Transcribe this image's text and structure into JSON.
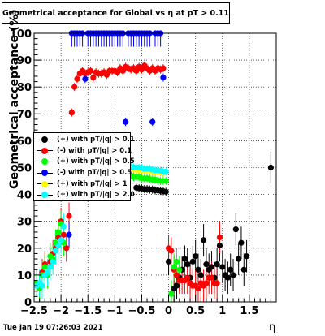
{
  "chart_data": {
    "type": "scatter",
    "title": "Geometrical acceptance for Global vs  η at pT > 0.11",
    "xlabel": "η",
    "ylabel": "Geometrical acceptance (%)",
    "xlim": [
      -2.5,
      2.0
    ],
    "ylim": [
      0,
      100
    ],
    "x_ticks": [
      -2.5,
      -2,
      -1.5,
      -1,
      -0.5,
      0,
      0.5,
      1,
      1.5
    ],
    "x_tick_labels": [
      "−2.5",
      "−2",
      "−1.5",
      "−1",
      "−0.5",
      "0",
      "0.5",
      "1",
      "1.5"
    ],
    "y_ticks": [
      0,
      10,
      20,
      30,
      40,
      50,
      60,
      70,
      80,
      90,
      100
    ],
    "y_tick_labels": [
      "0",
      "10",
      "20",
      "30",
      "40",
      "50",
      "60",
      "70",
      "80",
      "90",
      "100"
    ],
    "grid": true,
    "legend_position": "left-middle",
    "series": [
      {
        "name": "(+) with pT/|q| > 0.1",
        "color": "#000000",
        "points": [
          [
            -0.6,
            42.5
          ],
          [
            -0.55,
            42.3
          ],
          [
            -0.5,
            42.2
          ],
          [
            -0.45,
            42
          ],
          [
            -0.4,
            42
          ],
          [
            -0.35,
            41.8
          ],
          [
            -0.3,
            41.8
          ],
          [
            -0.25,
            41.5
          ],
          [
            -0.2,
            41.5
          ],
          [
            -0.15,
            41.3
          ],
          [
            -0.1,
            41.2
          ],
          [
            -0.05,
            41
          ],
          [
            0.0,
            15
          ],
          [
            0.05,
            3
          ],
          [
            0.1,
            5
          ],
          [
            0.15,
            6
          ],
          [
            0.2,
            9
          ],
          [
            0.25,
            12
          ],
          [
            0.3,
            16
          ],
          [
            0.35,
            14
          ],
          [
            0.4,
            9
          ],
          [
            0.45,
            15
          ],
          [
            0.5,
            17
          ],
          [
            0.55,
            12
          ],
          [
            0.6,
            10
          ],
          [
            0.65,
            23
          ],
          [
            0.7,
            14
          ],
          [
            0.75,
            12
          ],
          [
            0.8,
            13
          ],
          [
            0.85,
            9
          ],
          [
            0.9,
            14
          ],
          [
            0.95,
            21
          ],
          [
            1.0,
            13
          ],
          [
            1.05,
            10
          ],
          [
            1.1,
            9
          ],
          [
            1.15,
            12
          ],
          [
            1.2,
            10
          ],
          [
            1.25,
            27
          ],
          [
            1.3,
            16
          ],
          [
            1.35,
            22
          ],
          [
            1.4,
            12
          ],
          [
            1.45,
            17
          ],
          [
            1.9,
            50
          ]
        ]
      },
      {
        "name": "(-) with pT/|q| > 0.1",
        "color": "#ff0000",
        "points": [
          [
            -2.45,
            7
          ],
          [
            -2.4,
            5
          ],
          [
            -2.35,
            11
          ],
          [
            -2.3,
            14
          ],
          [
            -2.25,
            10
          ],
          [
            -2.2,
            15
          ],
          [
            -2.15,
            18
          ],
          [
            -2.1,
            20
          ],
          [
            -2.05,
            24
          ],
          [
            -2.0,
            30
          ],
          [
            -1.95,
            25
          ],
          [
            -1.9,
            20
          ],
          [
            -1.85,
            32
          ],
          [
            -1.8,
            70.5
          ],
          [
            -1.75,
            80
          ],
          [
            -1.7,
            83
          ],
          [
            -1.65,
            85
          ],
          [
            -1.6,
            86
          ],
          [
            -1.55,
            85
          ],
          [
            -1.5,
            85.5
          ],
          [
            -1.45,
            86
          ],
          [
            -1.4,
            83.5
          ],
          [
            -1.35,
            85.5
          ],
          [
            -1.3,
            85
          ],
          [
            -1.25,
            85
          ],
          [
            -1.2,
            85.5
          ],
          [
            -1.15,
            84.5
          ],
          [
            -1.1,
            86
          ],
          [
            -1.05,
            86
          ],
          [
            -1.0,
            86
          ],
          [
            -0.95,
            85.5
          ],
          [
            -0.9,
            87
          ],
          [
            -0.85,
            86
          ],
          [
            -0.8,
            87.5
          ],
          [
            -0.75,
            87
          ],
          [
            -0.7,
            86.5
          ],
          [
            -0.65,
            87
          ],
          [
            -0.6,
            86
          ],
          [
            -0.55,
            87.5
          ],
          [
            -0.5,
            86.5
          ],
          [
            -0.45,
            88
          ],
          [
            -0.4,
            87
          ],
          [
            -0.35,
            86
          ],
          [
            -0.3,
            87
          ],
          [
            -0.25,
            86
          ],
          [
            -0.2,
            87
          ],
          [
            -0.15,
            86.5
          ],
          [
            -0.1,
            87
          ],
          [
            0.0,
            20
          ],
          [
            0.05,
            19
          ],
          [
            0.1,
            12
          ],
          [
            0.15,
            10
          ],
          [
            0.2,
            8
          ],
          [
            0.25,
            8
          ],
          [
            0.3,
            8
          ],
          [
            0.35,
            9
          ],
          [
            0.4,
            7
          ],
          [
            0.45,
            6
          ],
          [
            0.5,
            6
          ],
          [
            0.55,
            5
          ],
          [
            0.6,
            7
          ],
          [
            0.65,
            6
          ],
          [
            0.7,
            7
          ],
          [
            0.75,
            9
          ],
          [
            0.8,
            9
          ],
          [
            0.85,
            7
          ],
          [
            0.9,
            7
          ],
          [
            0.95,
            24
          ]
        ]
      },
      {
        "name": "(+) with pT/|q| > 0.5",
        "color": "#00ff00",
        "points": [
          [
            -2.45,
            7
          ],
          [
            -2.4,
            5
          ],
          [
            -2.35,
            10
          ],
          [
            -2.3,
            13
          ],
          [
            -2.25,
            10
          ],
          [
            -2.2,
            17
          ],
          [
            -2.15,
            16
          ],
          [
            -2.1,
            22
          ],
          [
            -2.05,
            26
          ],
          [
            -2.0,
            29
          ],
          [
            -1.95,
            22
          ],
          [
            -0.85,
            48
          ],
          [
            -0.8,
            47.5
          ],
          [
            -0.75,
            47
          ],
          [
            -0.7,
            47
          ],
          [
            -0.65,
            46.5
          ],
          [
            -0.6,
            46.5
          ],
          [
            -0.55,
            46.5
          ],
          [
            -0.5,
            46
          ],
          [
            -0.45,
            46
          ],
          [
            -0.4,
            46
          ],
          [
            -0.35,
            45.8
          ],
          [
            -0.3,
            45.5
          ],
          [
            -0.25,
            45.5
          ],
          [
            -0.2,
            45.3
          ],
          [
            -0.15,
            45
          ],
          [
            -0.1,
            45
          ],
          [
            -0.05,
            45
          ],
          [
            0.05,
            3
          ],
          [
            0.1,
            13
          ],
          [
            0.15,
            15
          ],
          [
            0.2,
            12
          ]
        ]
      },
      {
        "name": "(-) with pT/|q| > 0.5",
        "color": "#0000ff",
        "points": [
          [
            -1.85,
            25
          ],
          [
            -1.8,
            100
          ],
          [
            -1.75,
            100
          ],
          [
            -1.7,
            100
          ],
          [
            -1.65,
            100
          ],
          [
            -1.6,
            100
          ],
          [
            -1.55,
            83
          ],
          [
            -1.5,
            100
          ],
          [
            -1.45,
            100
          ],
          [
            -1.4,
            100
          ],
          [
            -1.35,
            100
          ],
          [
            -1.3,
            100
          ],
          [
            -1.25,
            100
          ],
          [
            -1.2,
            100
          ],
          [
            -1.15,
            100
          ],
          [
            -1.1,
            100
          ],
          [
            -1.05,
            100
          ],
          [
            -1.0,
            100
          ],
          [
            -0.95,
            100
          ],
          [
            -0.9,
            100
          ],
          [
            -0.85,
            100
          ],
          [
            -0.8,
            67
          ],
          [
            -0.75,
            100
          ],
          [
            -0.7,
            100
          ],
          [
            -0.65,
            100
          ],
          [
            -0.6,
            100
          ],
          [
            -0.55,
            100
          ],
          [
            -0.5,
            100
          ],
          [
            -0.45,
            100
          ],
          [
            -0.4,
            100
          ],
          [
            -0.35,
            100
          ],
          [
            -0.3,
            67
          ],
          [
            -0.25,
            100
          ],
          [
            -0.2,
            100
          ],
          [
            -0.15,
            100
          ],
          [
            -0.1,
            83.5
          ]
        ]
      },
      {
        "name": "(+) with pT/|q| > 1",
        "color": "#ffff00",
        "points": [
          [
            -0.8,
            50
          ],
          [
            -0.75,
            49.8
          ],
          [
            -0.7,
            49.5
          ],
          [
            -0.65,
            49.5
          ],
          [
            -0.6,
            49.2
          ],
          [
            -0.55,
            49
          ],
          [
            -0.5,
            49
          ],
          [
            -0.45,
            49
          ],
          [
            -0.4,
            48.8
          ],
          [
            -0.35,
            48.8
          ],
          [
            -0.3,
            48.5
          ],
          [
            -0.25,
            48.5
          ],
          [
            -0.2,
            48.5
          ],
          [
            -0.15,
            48.2
          ],
          [
            -0.1,
            48
          ]
        ]
      },
      {
        "name": "(+) with pT/|q| > 2.0",
        "color": "#00ffff",
        "points": [
          [
            -2.45,
            6
          ],
          [
            -2.4,
            7
          ],
          [
            -2.35,
            6
          ],
          [
            -2.3,
            10
          ],
          [
            -2.25,
            11
          ],
          [
            -2.2,
            13
          ],
          [
            -2.15,
            15
          ],
          [
            -2.1,
            19
          ],
          [
            -2.05,
            21
          ],
          [
            -2.0,
            23
          ],
          [
            -1.95,
            28
          ],
          [
            -0.85,
            51
          ],
          [
            -0.8,
            50.5
          ],
          [
            -0.75,
            50.5
          ],
          [
            -0.7,
            50.3
          ],
          [
            -0.65,
            50
          ],
          [
            -0.6,
            50
          ],
          [
            -0.55,
            50
          ],
          [
            -0.5,
            49.8
          ],
          [
            -0.45,
            49.5
          ],
          [
            -0.4,
            49.5
          ],
          [
            -0.35,
            49.5
          ],
          [
            -0.3,
            49.2
          ],
          [
            -0.25,
            49
          ],
          [
            -0.2,
            49
          ],
          [
            -0.15,
            48.8
          ],
          [
            -0.1,
            48.5
          ],
          [
            -0.05,
            48.5
          ]
        ]
      }
    ]
  },
  "footer": {
    "timestamp": "Tue Jan 19 07:26:03 2021"
  }
}
